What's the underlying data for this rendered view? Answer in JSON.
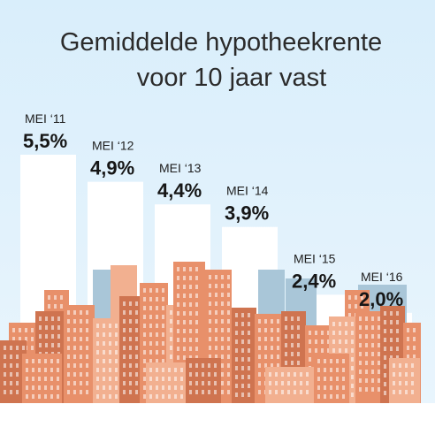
{
  "chart_data": {
    "type": "bar",
    "title_line1": "Gemiddelde hypotheekrente",
    "title_line2": "voor 10 jaar vast",
    "categories": [
      "MEI ‘11",
      "MEI ‘12",
      "MEI ‘13",
      "MEI ‘14",
      "MEI ‘15",
      "MEI ‘16"
    ],
    "values": [
      5.5,
      4.9,
      4.4,
      3.9,
      2.4,
      2.0
    ],
    "value_labels": [
      "5,5%",
      "4,9%",
      "4,4%",
      "3,9%",
      "2,4%",
      "2,0%"
    ],
    "ylim": [
      0,
      6.5
    ],
    "grid": false,
    "legend": "none"
  },
  "colors": {
    "sky_top": "#d9eefb",
    "sky_bottom": "#e9f5fd",
    "bar": "#ffffff",
    "building_main": "#e8906a",
    "building_dark": "#cf7450",
    "building_light": "#f2b090",
    "building_blue": "#a9c6d8",
    "window": "#ffffff"
  }
}
